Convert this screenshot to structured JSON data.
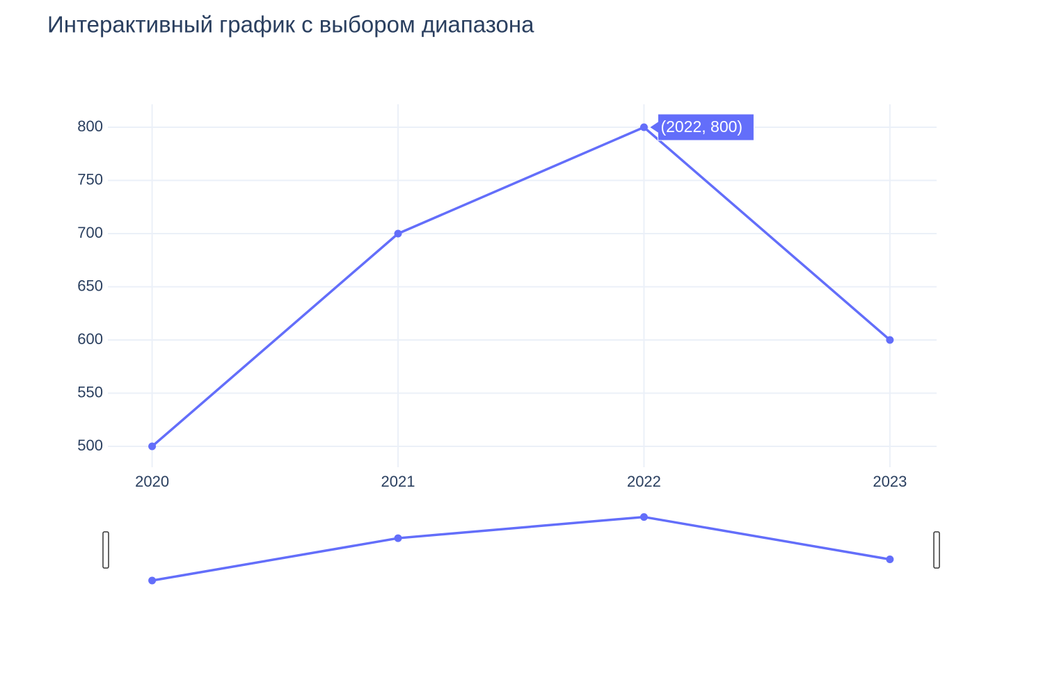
{
  "chart_data": {
    "type": "line",
    "title": "Интерактивный график с выбором диапазона",
    "x": [
      2020,
      2021,
      2022,
      2023
    ],
    "series": [
      {
        "color": "#636efa",
        "values": [
          500,
          700,
          800,
          600
        ]
      }
    ],
    "xlim": [
      2019.82,
      2023.19
    ],
    "xticks": [
      2020,
      2021,
      2022,
      2023
    ],
    "ylim": [
      480.4,
      821.6
    ],
    "yticks": [
      500,
      550,
      600,
      650,
      700,
      750,
      800
    ],
    "grid": true,
    "rangeslider": true,
    "tooltip": {
      "text": "(2022, 800)",
      "point": 2
    }
  }
}
